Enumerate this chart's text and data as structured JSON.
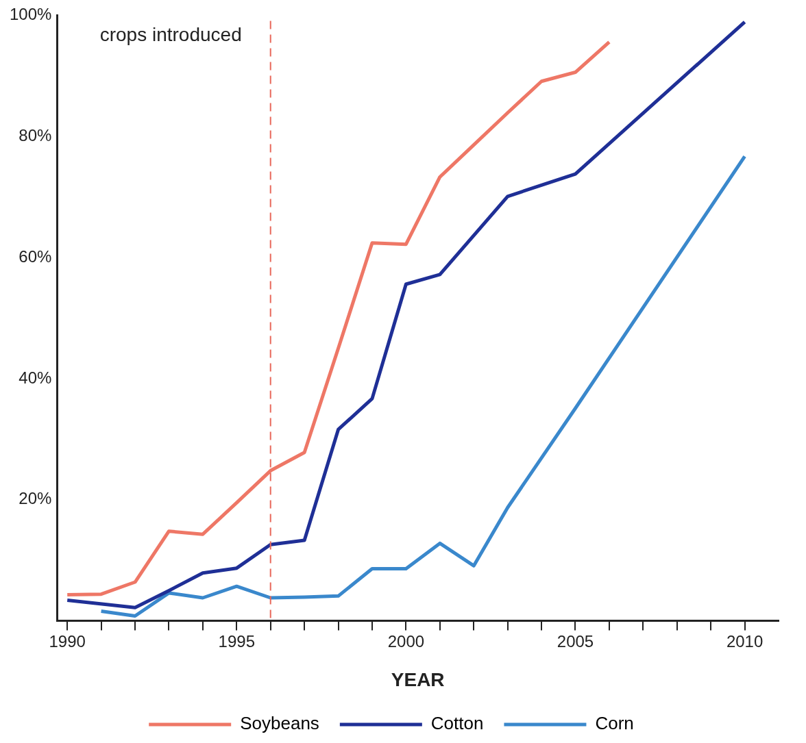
{
  "chart_data": {
    "type": "line",
    "xlabel": "YEAR",
    "xlim": [
      1989.7,
      2011
    ],
    "ylim": [
      0,
      100
    ],
    "xticks": [
      1990,
      {
        "value": 1991,
        "label": null
      },
      {
        "value": 1992,
        "label": null
      },
      {
        "value": 1993,
        "label": null
      },
      {
        "value": 1994,
        "label": null
      },
      1995,
      {
        "value": 1996,
        "label": null
      },
      {
        "value": 1997,
        "label": null
      },
      {
        "value": 1998,
        "label": null
      },
      {
        "value": 1999,
        "label": null
      },
      2000,
      {
        "value": 2001,
        "label": null
      },
      {
        "value": 2002,
        "label": null
      },
      {
        "value": 2003,
        "label": null
      },
      {
        "value": 2004,
        "label": null
      },
      2005,
      {
        "value": 2006,
        "label": null
      },
      {
        "value": 2007,
        "label": null
      },
      {
        "value": 2008,
        "label": null
      },
      {
        "value": 2009,
        "label": null
      },
      2010
    ],
    "yticks": [
      {
        "value": 20,
        "label": "20%"
      },
      {
        "value": 40,
        "label": "40%"
      },
      {
        "value": 60,
        "label": "60%"
      },
      {
        "value": 80,
        "label": "80%"
      },
      {
        "value": 100,
        "label": "100%"
      }
    ],
    "grid": false,
    "legend": "bottom",
    "marker": "none",
    "line_style": "solid",
    "ref_lines": [
      {
        "axis": "x",
        "value": 1996,
        "label": "crops introduced",
        "color": "#e8685a",
        "line_style": "dashed"
      }
    ],
    "series": [
      {
        "name": "Soybeans",
        "color": "#ee7766",
        "x": [
          1990,
          1991,
          1992,
          1993,
          1994,
          1995,
          1996,
          1997,
          1998,
          1999,
          2000,
          2001,
          2002,
          2003,
          2004,
          2005,
          2006
        ],
        "values": [
          4.3,
          4.4,
          6.4,
          14.8,
          14.3,
          19.5,
          24.8,
          27.8,
          45,
          62.4,
          62.2,
          73.3,
          78.6,
          83.9,
          89.1,
          90.6,
          95.6
        ]
      },
      {
        "name": "Cotton",
        "color": "#1f2f96",
        "x": [
          1990,
          1992,
          1993,
          1994,
          1995,
          1996,
          1997,
          1998,
          1999,
          2000,
          2001,
          2003,
          2005,
          2010
        ],
        "values": [
          3.4,
          2.2,
          5,
          7.9,
          8.7,
          12.6,
          13.3,
          31.6,
          36.7,
          55.6,
          57.2,
          70.1,
          73.8,
          98.9
        ]
      },
      {
        "name": "Corn",
        "color": "#3a88cc",
        "x": [
          1991,
          1992,
          1993,
          1994,
          1995,
          1996,
          1997,
          1998,
          1999,
          2000,
          2001,
          2002,
          2003,
          2005,
          2010
        ],
        "values": [
          1.6,
          0.8,
          4.6,
          3.8,
          5.7,
          3.8,
          3.9,
          4.1,
          8.6,
          8.6,
          12.8,
          9.1,
          18.7,
          35.1,
          76.7
        ]
      }
    ]
  }
}
